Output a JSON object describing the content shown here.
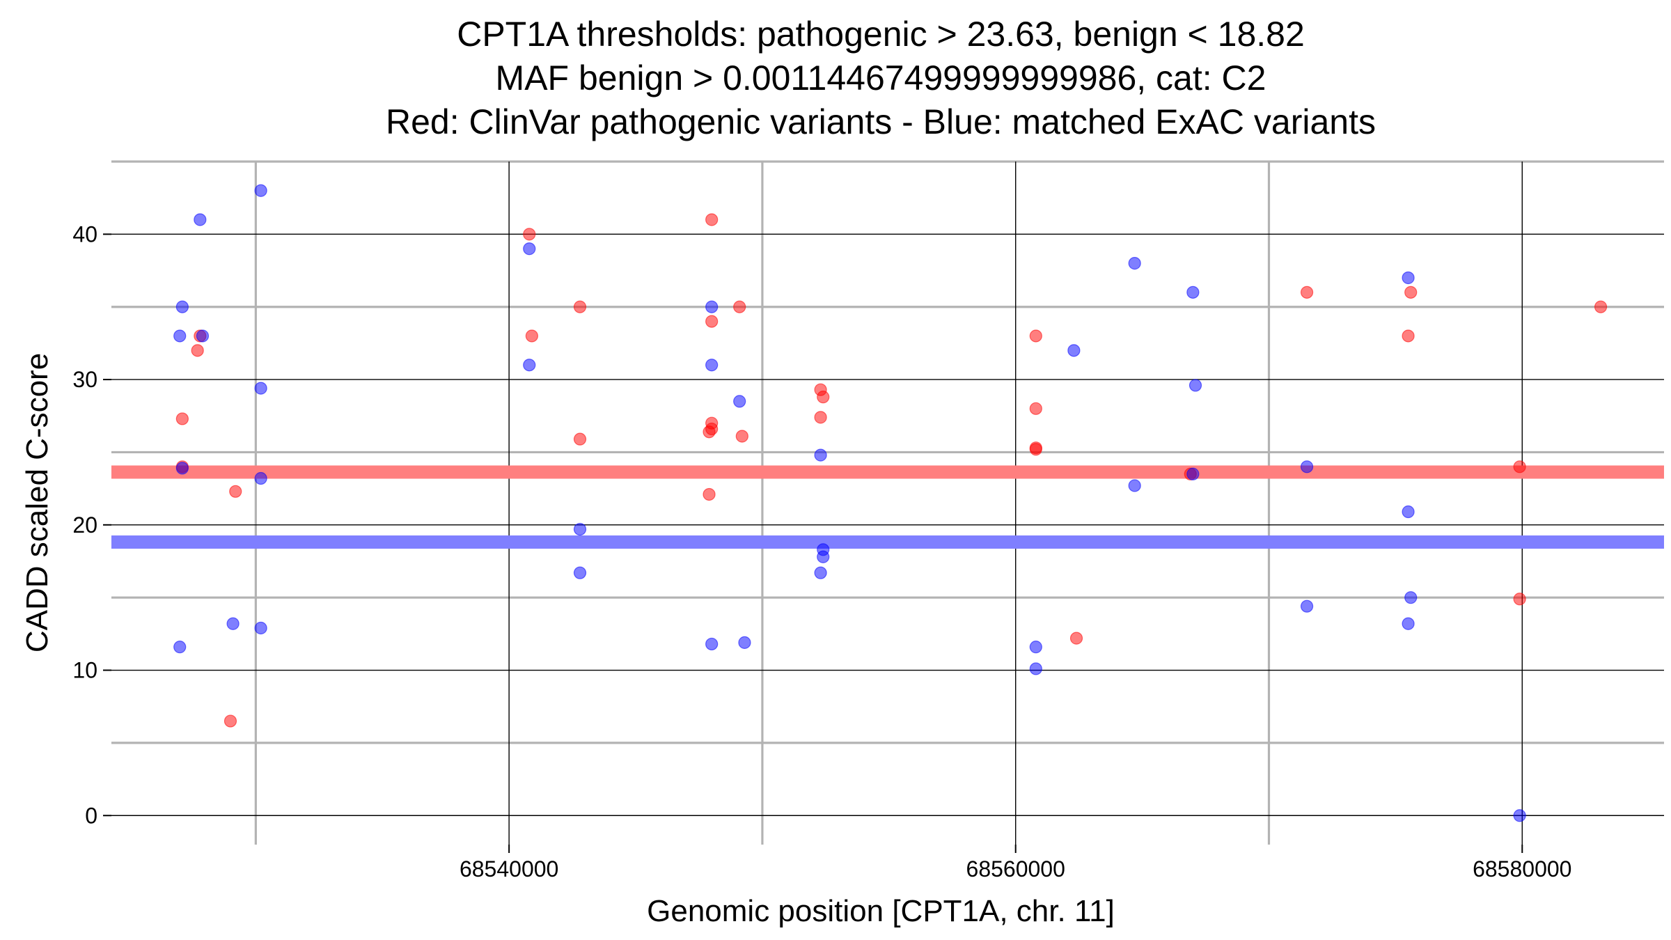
{
  "chart_data": {
    "type": "scatter",
    "title_lines": [
      "CPT1A thresholds: pathogenic > 23.63, benign < 18.82",
      "MAF benign > 0.00114467499999999986, cat: C2",
      "Red: ClinVar pathogenic variants - Blue: matched ExAC variants"
    ],
    "xlabel": "Genomic position [CPT1A, chr. 11]",
    "ylabel": "CADD scaled C-score",
    "xlim": [
      68524300,
      68585600
    ],
    "ylim": [
      -2,
      45
    ],
    "x_major_ticks": [
      68540000,
      68560000,
      68580000
    ],
    "x_tick_labels": [
      "68540000",
      "68560000",
      "68580000"
    ],
    "x_minor_ticks": [
      68530000,
      68550000,
      68570000
    ],
    "y_major_ticks": [
      0,
      10,
      20,
      30,
      40
    ],
    "y_tick_labels": [
      "0",
      "10",
      "20",
      "30",
      "40"
    ],
    "y_minor_ticks": [
      5,
      15,
      25,
      35,
      45
    ],
    "grid": true,
    "thresholds": [
      {
        "name": "pathogenic",
        "value": 23.63,
        "color": "#ff7f7f"
      },
      {
        "name": "benign",
        "value": 18.82,
        "color": "#7f7fff"
      }
    ],
    "series": [
      {
        "name": "ClinVar pathogenic variants",
        "color": "#ff0000",
        "points": [
          {
            "x": 68527800,
            "y": 33
          },
          {
            "x": 68527700,
            "y": 32
          },
          {
            "x": 68527100,
            "y": 27.3
          },
          {
            "x": 68527100,
            "y": 24
          },
          {
            "x": 68529200,
            "y": 22.3
          },
          {
            "x": 68529000,
            "y": 6.5
          },
          {
            "x": 68540800,
            "y": 40
          },
          {
            "x": 68540900,
            "y": 33
          },
          {
            "x": 68542800,
            "y": 35
          },
          {
            "x": 68542800,
            "y": 25.9
          },
          {
            "x": 68548000,
            "y": 41
          },
          {
            "x": 68548000,
            "y": 34
          },
          {
            "x": 68548000,
            "y": 27
          },
          {
            "x": 68548000,
            "y": 26.6
          },
          {
            "x": 68547900,
            "y": 26.4
          },
          {
            "x": 68547900,
            "y": 22.1
          },
          {
            "x": 68549100,
            "y": 35
          },
          {
            "x": 68549200,
            "y": 26.1
          },
          {
            "x": 68552300,
            "y": 29.3
          },
          {
            "x": 68552400,
            "y": 28.8
          },
          {
            "x": 68552300,
            "y": 27.4
          },
          {
            "x": 68560800,
            "y": 33
          },
          {
            "x": 68560800,
            "y": 28
          },
          {
            "x": 68560800,
            "y": 25.3
          },
          {
            "x": 68560800,
            "y": 25.2
          },
          {
            "x": 68562400,
            "y": 12.2
          },
          {
            "x": 68566900,
            "y": 23.5
          },
          {
            "x": 68571500,
            "y": 36
          },
          {
            "x": 68575600,
            "y": 36
          },
          {
            "x": 68575500,
            "y": 33
          },
          {
            "x": 68579900,
            "y": 24
          },
          {
            "x": 68579900,
            "y": 14.9
          },
          {
            "x": 68583100,
            "y": 35
          }
        ]
      },
      {
        "name": "matched ExAC variants",
        "color": "#0000ff",
        "points": [
          {
            "x": 68527800,
            "y": 41
          },
          {
            "x": 68527100,
            "y": 35
          },
          {
            "x": 68527000,
            "y": 33
          },
          {
            "x": 68527900,
            "y": 33
          },
          {
            "x": 68527100,
            "y": 23.9
          },
          {
            "x": 68527000,
            "y": 11.6
          },
          {
            "x": 68529100,
            "y": 13.2
          },
          {
            "x": 68530200,
            "y": 43
          },
          {
            "x": 68530200,
            "y": 29.4
          },
          {
            "x": 68530200,
            "y": 23.2
          },
          {
            "x": 68530200,
            "y": 12.9
          },
          {
            "x": 68540800,
            "y": 39
          },
          {
            "x": 68540800,
            "y": 31
          },
          {
            "x": 68542800,
            "y": 19.7
          },
          {
            "x": 68542800,
            "y": 16.7
          },
          {
            "x": 68548000,
            "y": 35
          },
          {
            "x": 68548000,
            "y": 31
          },
          {
            "x": 68548000,
            "y": 11.8
          },
          {
            "x": 68549100,
            "y": 28.5
          },
          {
            "x": 68549300,
            "y": 11.9
          },
          {
            "x": 68552300,
            "y": 24.8
          },
          {
            "x": 68552400,
            "y": 18.3
          },
          {
            "x": 68552400,
            "y": 17.8
          },
          {
            "x": 68552300,
            "y": 16.7
          },
          {
            "x": 68560800,
            "y": 11.6
          },
          {
            "x": 68560800,
            "y": 10.1
          },
          {
            "x": 68562300,
            "y": 32
          },
          {
            "x": 68564700,
            "y": 38
          },
          {
            "x": 68564700,
            "y": 22.7
          },
          {
            "x": 68567000,
            "y": 36
          },
          {
            "x": 68567100,
            "y": 29.6
          },
          {
            "x": 68567000,
            "y": 23.5
          },
          {
            "x": 68571500,
            "y": 24
          },
          {
            "x": 68571500,
            "y": 14.4
          },
          {
            "x": 68575500,
            "y": 37
          },
          {
            "x": 68575500,
            "y": 20.9
          },
          {
            "x": 68575600,
            "y": 15
          },
          {
            "x": 68575500,
            "y": 13.2
          },
          {
            "x": 68579900,
            "y": 0
          }
        ]
      }
    ]
  }
}
